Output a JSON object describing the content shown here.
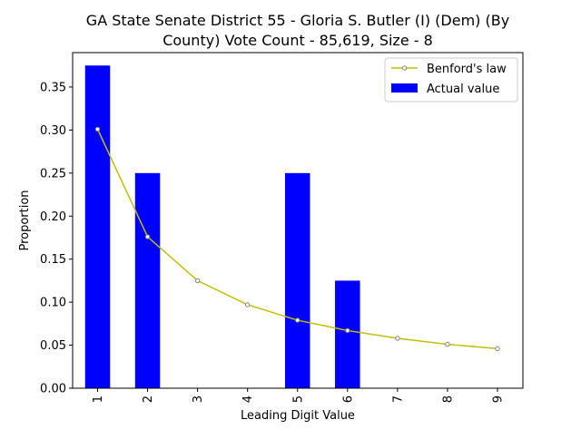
{
  "chart_data": {
    "type": "bar",
    "title_line1": "GA State Senate District 55 - Gloria S. Butler (I) (Dem) (By",
    "title_line2": "County) Vote Count - 85,619, Size - 8",
    "xlabel": "Leading Digit Value",
    "ylabel": "Proportion",
    "categories": [
      "1",
      "2",
      "3",
      "4",
      "5",
      "6",
      "7",
      "8",
      "9"
    ],
    "ylim": [
      0,
      0.39
    ],
    "yticks": [
      0.0,
      0.05,
      0.1,
      0.15,
      0.2,
      0.25,
      0.3,
      0.35
    ],
    "ytick_labels": [
      "0.00",
      "0.05",
      "0.10",
      "0.15",
      "0.20",
      "0.25",
      "0.30",
      "0.35"
    ],
    "grid": false,
    "legend_placement": "top-right",
    "series": [
      {
        "name": "Benford's law",
        "kind": "line",
        "color": "#bfbf00",
        "marker_edge_color": "#808080",
        "values": [
          0.301,
          0.176,
          0.125,
          0.097,
          0.079,
          0.067,
          0.058,
          0.051,
          0.046
        ]
      },
      {
        "name": "Actual value",
        "kind": "bar",
        "color": "#0000ff",
        "values": [
          0.375,
          0.25,
          0.0,
          0.0,
          0.25,
          0.125,
          0.0,
          0.0,
          0.0
        ]
      }
    ]
  }
}
